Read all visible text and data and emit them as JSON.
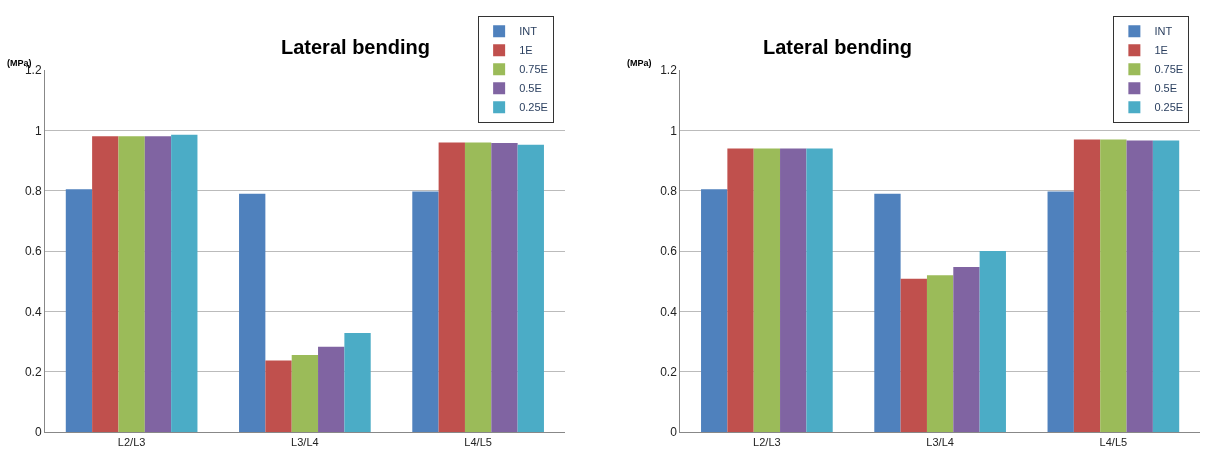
{
  "chart_data": [
    {
      "type": "bar",
      "title": "Lateral bending",
      "ylabel": "(MPa)",
      "categories": [
        "L2/L3",
        "L3/L4",
        "L4/L5"
      ],
      "series": [
        {
          "name": "INT",
          "color": "#4f81bd",
          "values": [
            0.805,
            0.79,
            0.797
          ]
        },
        {
          "name": "1E",
          "color": "#c0504d",
          "values": [
            0.98,
            0.237,
            0.96
          ]
        },
        {
          "name": "0.75E",
          "color": "#9bbb59",
          "values": [
            0.98,
            0.255,
            0.96
          ]
        },
        {
          "name": "0.5E",
          "color": "#8064a2",
          "values": [
            0.98,
            0.283,
            0.958
          ]
        },
        {
          "name": "0.25E",
          "color": "#4bacc6",
          "values": [
            0.985,
            0.328,
            0.952
          ]
        }
      ],
      "ylim": [
        0,
        1.2
      ],
      "yticks": [
        0,
        0.2,
        0.4,
        0.6,
        0.8,
        1,
        1.2
      ],
      "grid": "y",
      "legend": "top right"
    },
    {
      "type": "bar",
      "title": "Lateral bending",
      "ylabel": "(MPa)",
      "categories": [
        "L2/L3",
        "L3/L4",
        "L4/L5"
      ],
      "series": [
        {
          "name": "INT",
          "color": "#4f81bd",
          "values": [
            0.805,
            0.79,
            0.797
          ]
        },
        {
          "name": "1E",
          "color": "#c0504d",
          "values": [
            0.94,
            0.508,
            0.97
          ]
        },
        {
          "name": "0.75E",
          "color": "#9bbb59",
          "values": [
            0.94,
            0.52,
            0.97
          ]
        },
        {
          "name": "0.5E",
          "color": "#8064a2",
          "values": [
            0.94,
            0.547,
            0.966
          ]
        },
        {
          "name": "0.25E",
          "color": "#4bacc6",
          "values": [
            0.94,
            0.6,
            0.966
          ]
        }
      ],
      "ylim": [
        0,
        1.2
      ],
      "yticks": [
        0,
        0.2,
        0.4,
        0.6,
        0.8,
        1,
        1.2
      ],
      "grid": "y",
      "legend": "top right"
    }
  ]
}
